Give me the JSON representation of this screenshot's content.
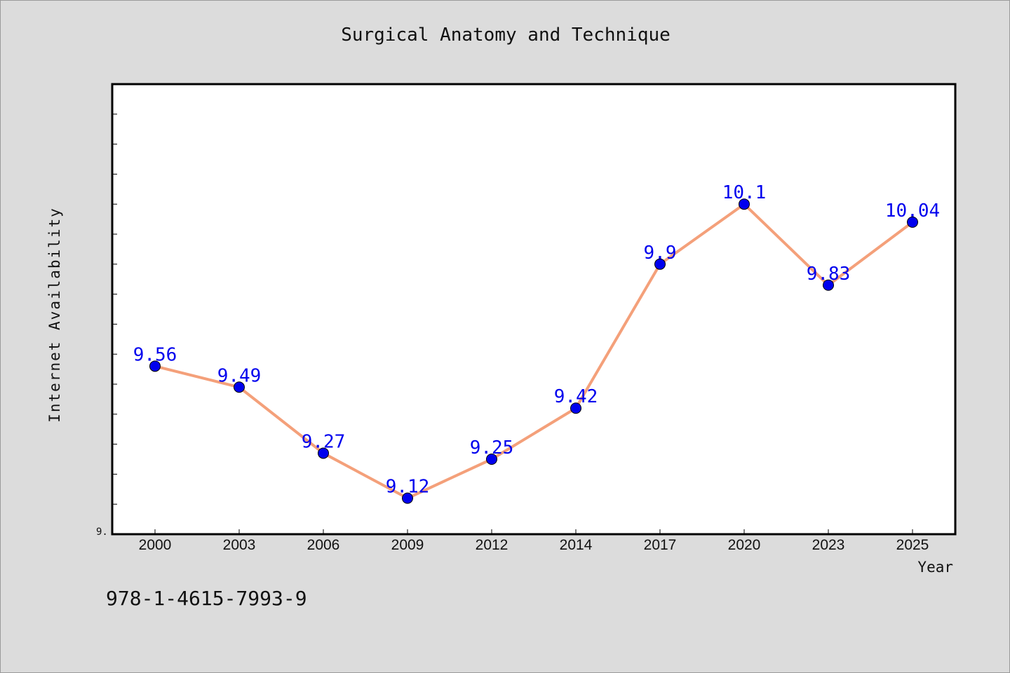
{
  "chart_data": {
    "type": "line",
    "title": "Surgical Anatomy and Technique",
    "xlabel": "Year",
    "ylabel": "Internet Availability",
    "categories": [
      "2000",
      "2003",
      "2006",
      "2009",
      "2012",
      "2014",
      "2017",
      "2020",
      "2023",
      "2025"
    ],
    "series": [
      {
        "values": [
          9.56,
          9.49,
          9.27,
          9.12,
          9.25,
          9.42,
          9.9,
          10.1,
          9.83,
          10.04
        ]
      }
    ],
    "ylim": [
      9.0,
      10.5
    ],
    "ytick_labels": [
      "9."
    ],
    "grid": false,
    "line_color": "#f4a07a",
    "marker_color": "#0000ee",
    "label_color": "#0000ee"
  },
  "footer": {
    "isbn": "978-1-4615-7993-9"
  }
}
